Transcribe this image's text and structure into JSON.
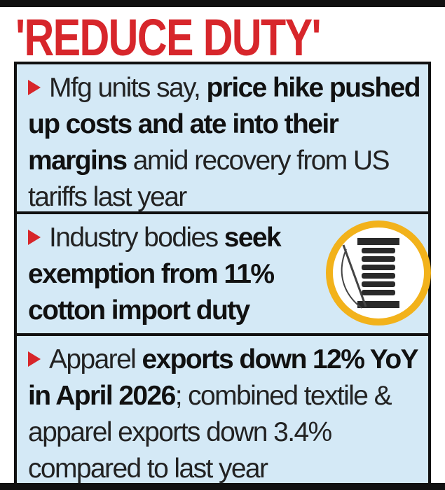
{
  "title": "'REDUCE DUTY'",
  "bullets": [
    {
      "segments": [
        {
          "text": "Mfg units say, ",
          "bold": false
        },
        {
          "text": "price hike pushed up costs and ate into their margins",
          "bold": true
        },
        {
          "text": " amid recovery from US tariffs last year",
          "bold": false
        }
      ]
    },
    {
      "segments": [
        {
          "text": "Industry bodies ",
          "bold": false
        },
        {
          "text": "seek exemption from 11% cotton import duty",
          "bold": true
        }
      ]
    },
    {
      "segments": [
        {
          "text": "Apparel ",
          "bold": false
        },
        {
          "text": "exports down 12% YoY in April 2026",
          "bold": true
        },
        {
          "text": "; combined textile & apparel exports down 3.4% compared to last year",
          "bold": false
        }
      ]
    }
  ]
}
